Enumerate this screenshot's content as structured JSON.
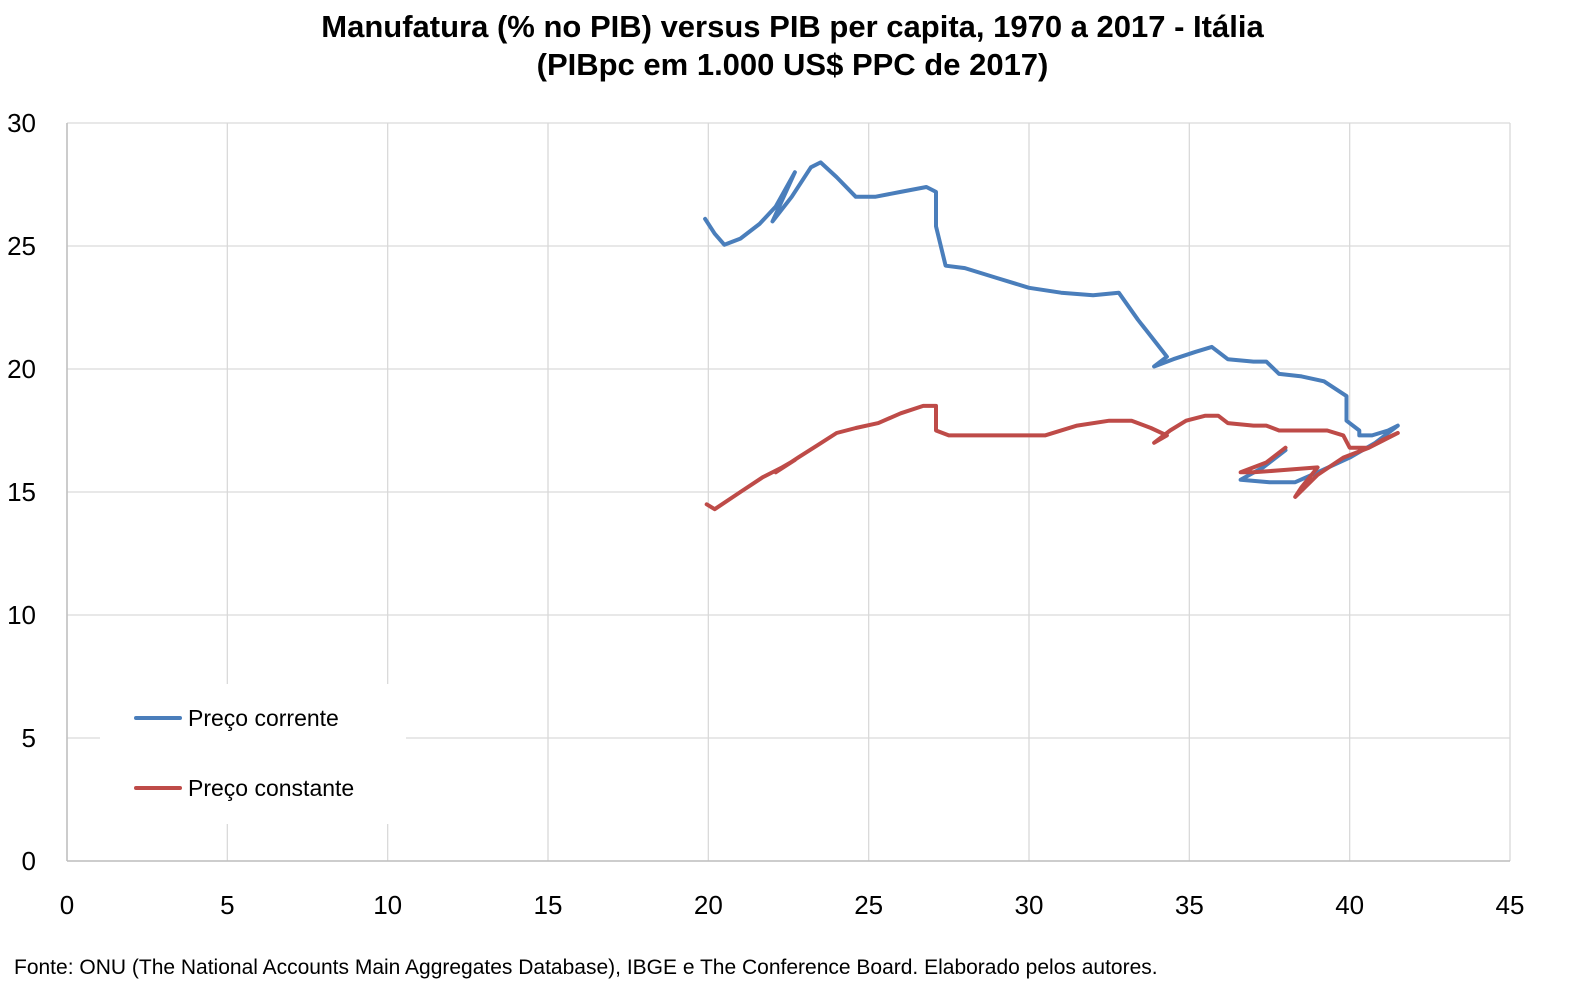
{
  "chart_data": {
    "type": "line",
    "title": "Manufatura (% no PIB) versus PIB per capita, 1970 a 2017 - Itália",
    "subtitle": "(PIBpc em 1.000 US$ PPC de 2017)",
    "xlabel": "",
    "ylabel": "",
    "xlim": [
      0,
      45
    ],
    "ylim": [
      0,
      30
    ],
    "xticks": [
      "0",
      "5",
      "10",
      "15",
      "20",
      "25",
      "30",
      "35",
      "40",
      "45"
    ],
    "yticks": [
      "0",
      "5",
      "10",
      "15",
      "20",
      "25",
      "30"
    ],
    "grid": true,
    "legend_placement": "bottom-left",
    "source": "Fonte: ONU (The National Accounts Main Aggregates Database), IBGE e The Conference Board. Elaborado pelos autores.",
    "series": [
      {
        "name": "Preço corrente",
        "color": "#4a7ebb",
        "points": [
          [
            19.9,
            26.1
          ],
          [
            20.2,
            25.5
          ],
          [
            20.5,
            25.05
          ],
          [
            21.0,
            25.3
          ],
          [
            21.6,
            25.9
          ],
          [
            22.1,
            26.6
          ],
          [
            22.7,
            28.0
          ],
          [
            22.0,
            26.0
          ],
          [
            22.6,
            27.0
          ],
          [
            23.2,
            28.2
          ],
          [
            23.5,
            28.4
          ],
          [
            24.0,
            27.8
          ],
          [
            24.6,
            27.0
          ],
          [
            25.2,
            27.0
          ],
          [
            26.0,
            27.2
          ],
          [
            26.8,
            27.4
          ],
          [
            27.1,
            27.2
          ],
          [
            27.1,
            25.8
          ],
          [
            27.4,
            24.2
          ],
          [
            28.0,
            24.1
          ],
          [
            29.0,
            23.7
          ],
          [
            30.0,
            23.3
          ],
          [
            31.0,
            23.1
          ],
          [
            32.0,
            23.0
          ],
          [
            32.8,
            23.1
          ],
          [
            33.4,
            22.0
          ],
          [
            34.0,
            21.0
          ],
          [
            34.3,
            20.5
          ],
          [
            33.9,
            20.1
          ],
          [
            34.5,
            20.4
          ],
          [
            35.2,
            20.7
          ],
          [
            35.7,
            20.9
          ],
          [
            36.2,
            20.4
          ],
          [
            37.0,
            20.3
          ],
          [
            37.4,
            20.3
          ],
          [
            37.8,
            19.8
          ],
          [
            38.5,
            19.7
          ],
          [
            39.2,
            19.5
          ],
          [
            39.9,
            18.9
          ],
          [
            39.9,
            17.9
          ],
          [
            40.3,
            17.5
          ],
          [
            40.3,
            17.3
          ],
          [
            40.7,
            17.3
          ],
          [
            41.2,
            17.5
          ],
          [
            41.5,
            17.7
          ],
          [
            40.8,
            17.0
          ],
          [
            40.0,
            16.4
          ],
          [
            39.0,
            15.8
          ],
          [
            38.3,
            15.4
          ],
          [
            37.5,
            15.4
          ],
          [
            36.6,
            15.5
          ],
          [
            37.3,
            16.0
          ],
          [
            38.0,
            16.7
          ]
        ]
      },
      {
        "name": "Preço constante",
        "color": "#be4b48",
        "points": [
          [
            19.95,
            14.5
          ],
          [
            20.2,
            14.3
          ],
          [
            21.0,
            15.0
          ],
          [
            21.7,
            15.6
          ],
          [
            22.3,
            16.0
          ],
          [
            22.7,
            16.3
          ],
          [
            22.1,
            15.8
          ],
          [
            22.8,
            16.4
          ],
          [
            23.4,
            16.9
          ],
          [
            24.0,
            17.4
          ],
          [
            24.6,
            17.6
          ],
          [
            25.3,
            17.8
          ],
          [
            26.0,
            18.2
          ],
          [
            26.7,
            18.5
          ],
          [
            27.1,
            18.5
          ],
          [
            27.1,
            17.5
          ],
          [
            27.5,
            17.3
          ],
          [
            28.5,
            17.3
          ],
          [
            29.5,
            17.3
          ],
          [
            30.5,
            17.3
          ],
          [
            31.5,
            17.7
          ],
          [
            32.5,
            17.9
          ],
          [
            33.2,
            17.9
          ],
          [
            33.8,
            17.6
          ],
          [
            34.3,
            17.3
          ],
          [
            33.9,
            17.0
          ],
          [
            34.4,
            17.5
          ],
          [
            34.9,
            17.9
          ],
          [
            35.5,
            18.1
          ],
          [
            35.9,
            18.1
          ],
          [
            36.2,
            17.8
          ],
          [
            37.0,
            17.7
          ],
          [
            37.4,
            17.7
          ],
          [
            37.8,
            17.5
          ],
          [
            38.6,
            17.5
          ],
          [
            39.3,
            17.5
          ],
          [
            39.8,
            17.3
          ],
          [
            40.0,
            16.8
          ],
          [
            40.6,
            16.8
          ],
          [
            41.0,
            17.1
          ],
          [
            41.5,
            17.4
          ],
          [
            40.6,
            16.8
          ],
          [
            39.8,
            16.4
          ],
          [
            39.0,
            15.7
          ],
          [
            38.3,
            14.8
          ],
          [
            38.5,
            15.2
          ],
          [
            39.0,
            16.0
          ],
          [
            38.0,
            15.9
          ],
          [
            37.0,
            15.8
          ],
          [
            36.6,
            15.8
          ],
          [
            37.4,
            16.2
          ],
          [
            38.0,
            16.8
          ]
        ]
      }
    ]
  }
}
